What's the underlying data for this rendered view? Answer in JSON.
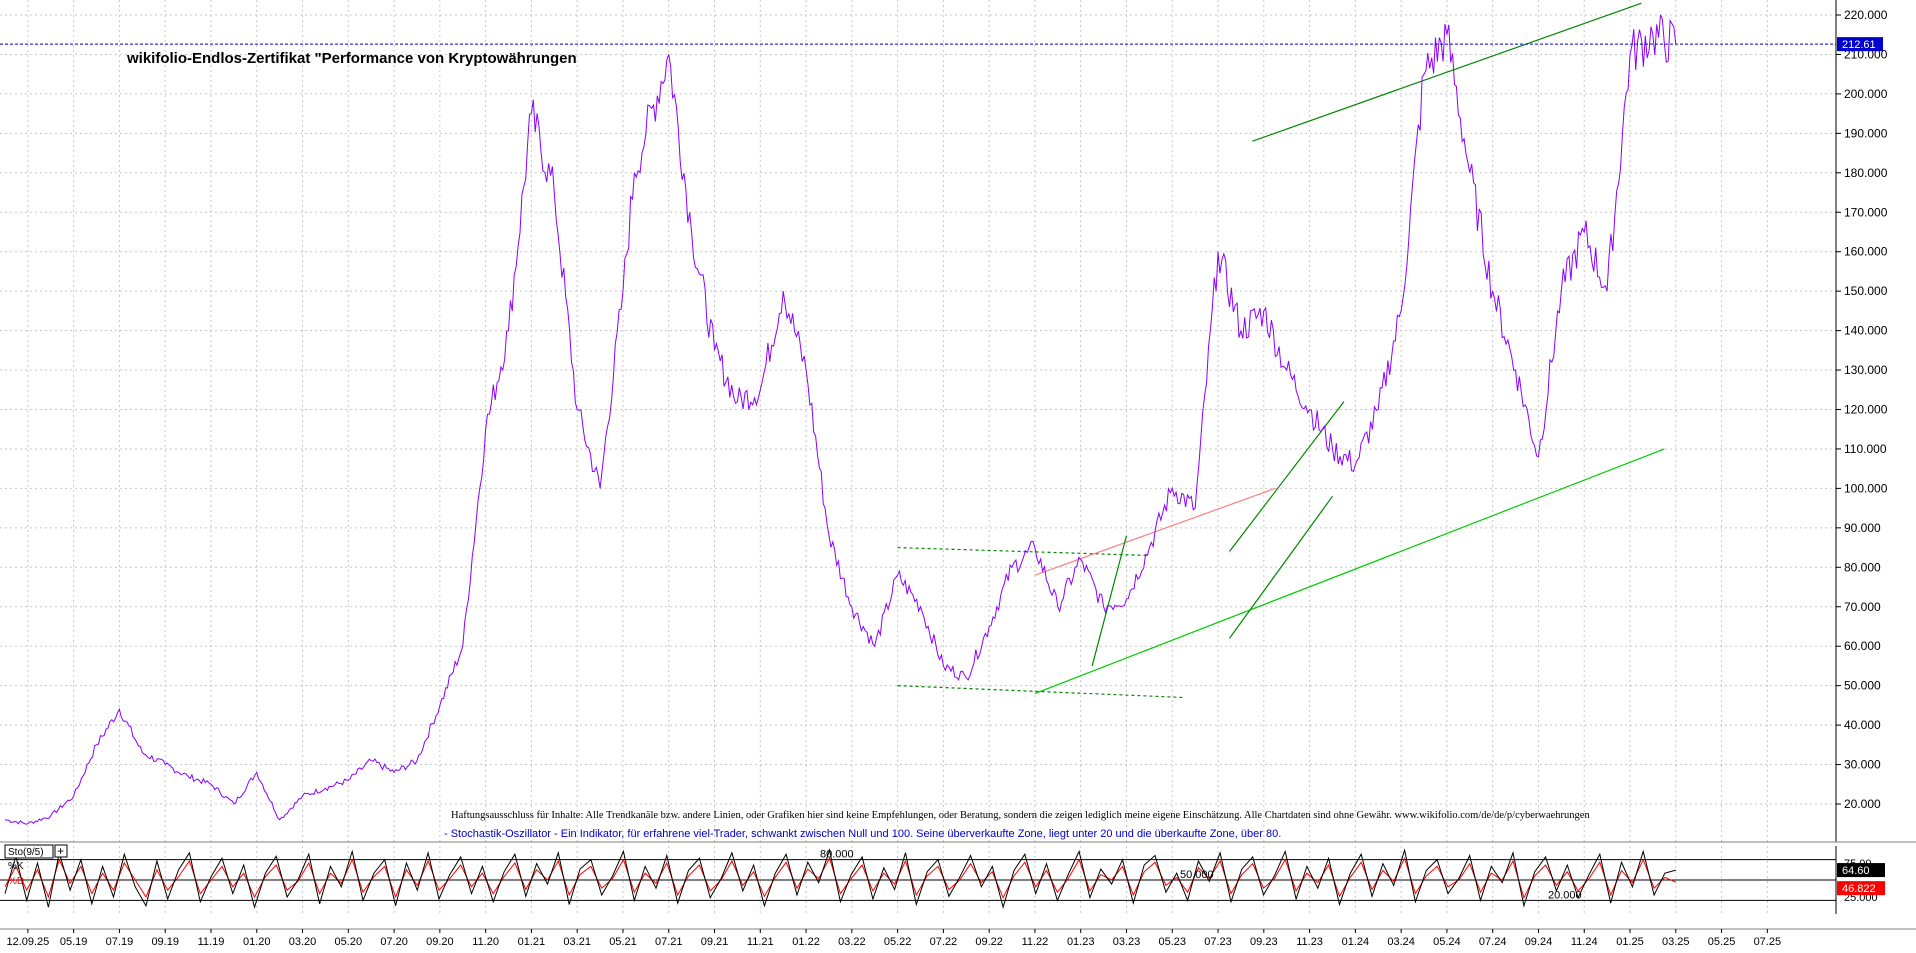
{
  "chart_data": [
    {
      "type": "line",
      "title": "wikifolio-Endlos-Zertifikat \"Performance von Kryptowährungen",
      "ylim": [
        10,
        225
      ],
      "y_ticks": [
        20,
        30,
        40,
        50,
        60,
        70,
        80,
        90,
        100,
        110,
        120,
        130,
        140,
        150,
        160,
        170,
        180,
        190,
        200,
        210,
        220
      ],
      "y_tick_labels": [
        "20.000",
        "30.000",
        "40.000",
        "50.000",
        "60.000",
        "70.000",
        "80.000",
        "90.000",
        "100.000",
        "110.000",
        "120.000",
        "130.000",
        "140.000",
        "150.000",
        "160.000",
        "170.000",
        "180.000",
        "190.000",
        "200.000",
        "210.000",
        "220.000"
      ],
      "x_tick_labels": [
        "12.09.25",
        "05.19",
        "07.19",
        "09.19",
        "11.19",
        "01.20",
        "03.20",
        "05.20",
        "07.20",
        "09.20",
        "11.20",
        "01.21",
        "03.21",
        "05.21",
        "07.21",
        "09.21",
        "11.21",
        "01.22",
        "03.22",
        "05.22",
        "07.22",
        "09.22",
        "11.22",
        "01.23",
        "03.23",
        "05.23",
        "07.23",
        "09.23",
        "11.23",
        "01.24",
        "03.24",
        "05.24",
        "07.24",
        "09.24",
        "11.24",
        "01.25",
        "03.25",
        "05.25",
        "07.25"
      ],
      "x_ticks_idx": [
        2,
        6,
        10,
        14,
        18,
        22,
        26,
        30,
        34,
        38,
        42,
        46,
        50,
        54,
        58,
        62,
        66,
        70,
        74,
        78,
        82,
        86,
        90,
        94,
        98,
        102,
        106,
        110,
        114,
        118,
        122,
        126,
        130,
        134,
        138,
        142,
        146,
        150,
        154
      ],
      "last_value": 212.61,
      "last_value_label": "212.61",
      "grid": true,
      "series": [
        {
          "color": "#8b00ff",
          "x_idx": [
            0,
            2,
            4,
            6,
            8,
            10,
            12,
            14,
            16,
            18,
            20,
            22,
            24,
            26,
            28,
            30,
            32,
            34,
            36,
            38,
            40,
            42,
            44,
            46,
            48,
            50,
            52,
            54,
            55,
            56,
            58,
            60,
            62,
            64,
            66,
            68,
            70,
            72,
            74,
            76,
            78,
            80,
            82,
            84,
            86,
            88,
            90,
            92,
            94,
            96,
            98,
            100,
            102,
            104,
            106,
            108,
            110,
            112,
            114,
            116,
            118,
            120,
            122,
            124,
            126,
            128,
            130,
            132,
            134,
            136,
            138,
            140,
            142,
            144,
            146,
            148,
            150,
            152,
            154,
            156,
            158,
            160
          ],
          "values": [
            16,
            15,
            17,
            22,
            35,
            44,
            33,
            30,
            27,
            25,
            20,
            28,
            16,
            22,
            24,
            26,
            31,
            28,
            31,
            45,
            60,
            115,
            140,
            195,
            175,
            120,
            100,
            150,
            180,
            190,
            210,
            165,
            135,
            122,
            125,
            150,
            130,
            88,
            70,
            60,
            78,
            70,
            55,
            52,
            65,
            80,
            85,
            70,
            82,
            70,
            72,
            85,
            100,
            95,
            160,
            140,
            145,
            130,
            120,
            110,
            106,
            120,
            145,
            205,
            215,
            180,
            150,
            130,
            108,
            150,
            165,
            150,
            210,
            215,
            212.61,
            212.61,
            212.61,
            212.61,
            212.61,
            212.61,
            212.61,
            212.61
          ]
        }
      ],
      "trend_lines": [
        {
          "from": [
            109,
            188
          ],
          "to": [
            143,
            223
          ],
          "color": "#008800",
          "style": "solid"
        },
        {
          "from": [
            90,
            48
          ],
          "to": [
            145,
            110
          ],
          "color": "#00cc00",
          "style": "solid"
        },
        {
          "from": [
            78,
            85
          ],
          "to": [
            100,
            83
          ],
          "color": "#008800",
          "style": "dashed"
        },
        {
          "from": [
            78,
            50
          ],
          "to": [
            103,
            47
          ],
          "color": "#008800",
          "style": "dashed"
        },
        {
          "from": [
            90,
            78
          ],
          "to": [
            111,
            100
          ],
          "color": "#ff8080",
          "style": "solid"
        },
        {
          "from": [
            95,
            55
          ],
          "to": [
            98,
            88
          ],
          "color": "#008800",
          "style": "solid"
        },
        {
          "from": [
            107,
            84
          ],
          "to": [
            117,
            122
          ],
          "color": "#008800",
          "style": "solid"
        },
        {
          "from": [
            107,
            62
          ],
          "to": [
            116,
            98
          ],
          "color": "#008800",
          "style": "solid"
        }
      ],
      "disclaimer": "Haftungsausschluss für Inhalte: Alle Trendkanäle bzw. andere Linien, oder Grafiken hier sind keine Empfehlungen, oder Beratung, sondern die zeigen lediglich meine eigene Einschätzung. Alle Chartdaten sind ohne Gewähr.  www.wikifolio.com/de/de/p/cyberwaehrungen",
      "annotation": "- Stochastik-Oszillator - Ein Indikator, für erfahrene viel-Trader, schwankt zwischen Null und 100. Seine überverkaufte Zone, liegt unter 20 und die überkaufte Zone, über 80."
    },
    {
      "type": "line",
      "title": "Sto(9/5)",
      "ylim": [
        0,
        100
      ],
      "y_tick_labels": [
        "75.00",
        "25.000"
      ],
      "level_labels": [
        "80.000",
        "50.000",
        "20.000"
      ],
      "k_label": "%K",
      "d_label": "%D",
      "k_value": "64.60",
      "d_value": "46.822",
      "series": [
        {
          "name": "%K",
          "color": "#000000",
          "values": [
            30,
            85,
            20,
            75,
            10,
            90,
            35,
            80,
            15,
            70,
            25,
            88,
            40,
            12,
            78,
            22,
            65,
            90,
            18,
            55,
            82,
            30,
            72,
            10,
            60,
            85,
            25,
            50,
            88,
            15,
            70,
            40,
            92,
            20,
            60,
            80,
            12,
            75,
            35,
            90,
            22,
            58,
            84,
            30,
            70,
            18,
            62,
            88,
            26,
            74,
            44,
            90,
            14,
            66,
            80,
            28,
            56,
            92,
            20,
            70,
            38,
            86,
            16,
            64,
            82,
            24,
            52,
            90,
            34,
            72,
            12,
            60,
            88,
            28,
            76,
            46,
            94,
            18,
            58,
            84,
            22,
            68,
            36,
            90,
            14,
            62,
            80,
            26,
            54,
            86,
            40,
            70,
            10,
            64,
            88,
            30,
            74,
            20,
            58,
            92,
            24,
            66,
            44,
            80,
            16,
            72,
            86,
            32,
            60,
            20,
            78,
            48,
            90,
            18,
            66,
            84,
            28,
            56,
            92,
            22,
            70,
            38,
            82,
            14,
            60,
            88,
            26,
            74,
            42,
            94,
            18,
            64,
            80,
            30,
            52,
            86,
            20,
            70,
            46,
            90,
            12,
            62,
            84,
            34,
            72,
            24,
            58,
            88,
            16,
            76,
            40,
            92,
            28,
            60,
            64.6
          ]
        },
        {
          "name": "%D",
          "color": "#ff0000",
          "values": [
            40,
            70,
            35,
            65,
            25,
            80,
            45,
            70,
            30,
            60,
            35,
            75,
            50,
            25,
            65,
            35,
            55,
            78,
            30,
            50,
            70,
            40,
            60,
            25,
            55,
            72,
            35,
            48,
            75,
            30,
            60,
            45,
            80,
            32,
            55,
            70,
            25,
            65,
            42,
            78,
            35,
            52,
            72,
            40,
            60,
            30,
            55,
            75,
            36,
            65,
            50,
            78,
            28,
            58,
            70,
            38,
            52,
            80,
            32,
            60,
            45,
            75,
            28,
            56,
            72,
            34,
            50,
            78,
            42,
            62,
            26,
            54,
            76,
            38,
            66,
            52,
            82,
            30,
            52,
            72,
            34,
            60,
            44,
            78,
            28,
            56,
            70,
            36,
            50,
            74,
            46,
            62,
            24,
            56,
            76,
            40,
            64,
            32,
            52,
            80,
            34,
            58,
            50,
            70,
            28,
            62,
            76,
            42,
            54,
            32,
            68,
            52,
            78,
            30,
            58,
            74,
            38,
            52,
            80,
            34,
            60,
            46,
            72,
            26,
            54,
            76,
            36,
            64,
            48,
            82,
            30,
            56,
            70,
            40,
            50,
            74,
            32,
            60,
            50,
            78,
            24,
            56,
            72,
            42,
            62,
            34,
            52,
            76,
            28,
            64,
            46,
            80,
            38,
            54,
            46.822
          ]
        }
      ]
    }
  ]
}
